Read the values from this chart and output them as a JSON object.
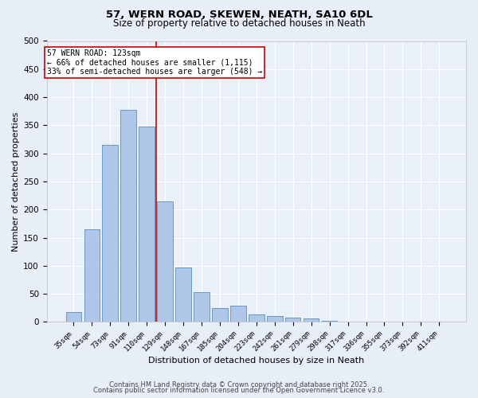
{
  "title1": "57, WERN ROAD, SKEWEN, NEATH, SA10 6DL",
  "title2": "Size of property relative to detached houses in Neath",
  "xlabel": "Distribution of detached houses by size in Neath",
  "ylabel": "Number of detached properties",
  "categories": [
    "35sqm",
    "54sqm",
    "73sqm",
    "91sqm",
    "110sqm",
    "129sqm",
    "148sqm",
    "167sqm",
    "185sqm",
    "204sqm",
    "223sqm",
    "242sqm",
    "261sqm",
    "279sqm",
    "298sqm",
    "317sqm",
    "336sqm",
    "355sqm",
    "373sqm",
    "392sqm",
    "411sqm"
  ],
  "values": [
    17,
    165,
    315,
    378,
    348,
    215,
    97,
    53,
    25,
    29,
    14,
    11,
    8,
    6,
    2,
    1,
    0,
    0,
    1,
    0,
    1
  ],
  "bar_color": "#aec6e8",
  "bar_edge_color": "#5a8fc0",
  "vline_x": 4.5,
  "vline_color": "#cc0000",
  "annotation_line1": "57 WERN ROAD: 123sqm",
  "annotation_line2": "← 66% of detached houses are smaller (1,115)",
  "annotation_line3": "33% of semi-detached houses are larger (548) →",
  "box_color": "#ffffff",
  "box_edge_color": "#cc0000",
  "footer1": "Contains HM Land Registry data © Crown copyright and database right 2025.",
  "footer2": "Contains public sector information licensed under the Open Government Licence v3.0.",
  "bg_color": "#e8eef7",
  "plot_bg_color": "#eaf0f8",
  "grid_color": "#ffffff",
  "ylim": [
    0,
    500
  ],
  "yticks": [
    0,
    50,
    100,
    150,
    200,
    250,
    300,
    350,
    400,
    450,
    500
  ]
}
